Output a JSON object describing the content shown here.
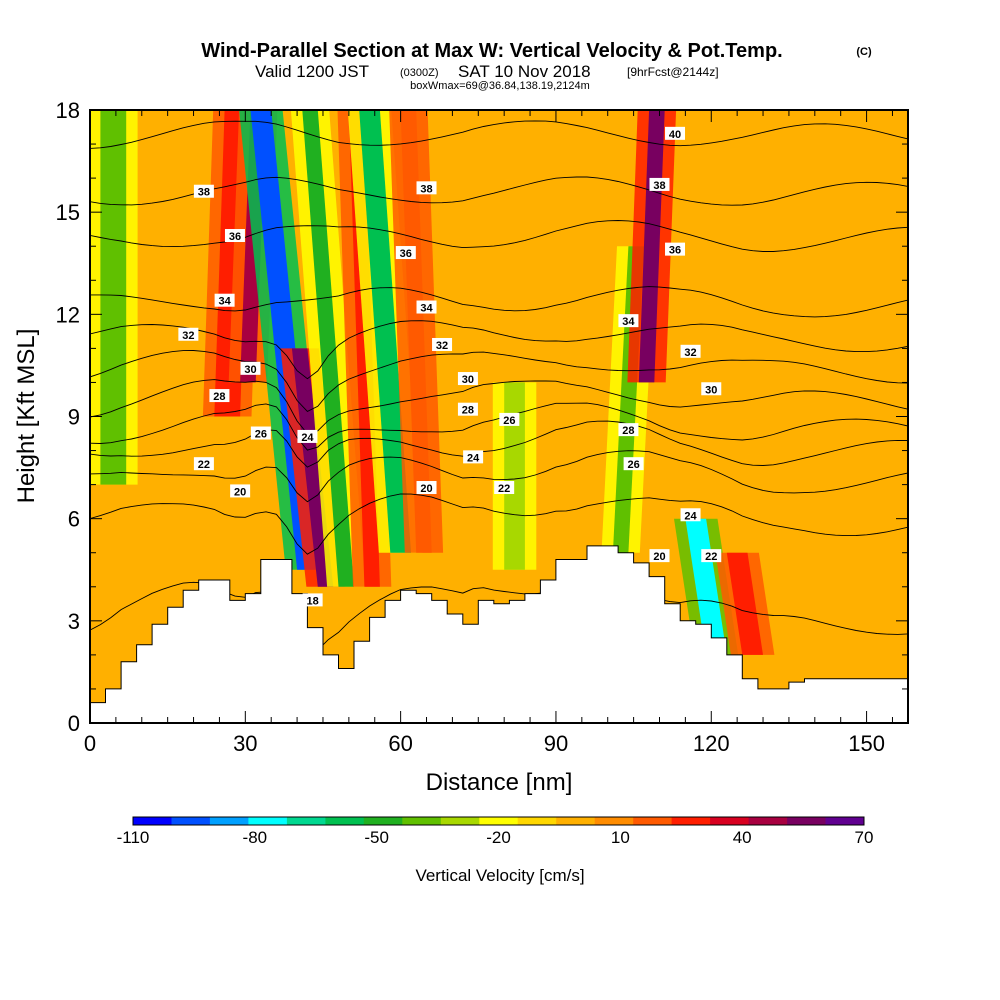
{
  "header": {
    "title": "Wind-Parallel Section at Max W: Vertical Velocity & Pot.Temp.",
    "copyright": "(C)",
    "valid_prefix": "Valid 1200 JST",
    "valid_utc": "(0300Z)",
    "valid_date": "SAT 10 Nov 2018",
    "forecast": "[9hrFcst@2144z]",
    "box_info": "boxWmax=69@36.84,138.19,2124m"
  },
  "chart_data": {
    "type": "heatmap",
    "title": "Wind-Parallel Section at Max W: Vertical Velocity & Pot.Temp.",
    "xlabel": "Distance [nm]",
    "ylabel": "Height [Kft MSL]",
    "xlim": [
      0,
      158
    ],
    "ylim": [
      0,
      18
    ],
    "x_ticks": [
      "0",
      "30",
      "60",
      "90",
      "120",
      "150"
    ],
    "y_ticks": [
      "0",
      "3",
      "6",
      "9",
      "12",
      "15",
      "18"
    ],
    "colorbar": {
      "label": "Vertical Velocity [cm/s]",
      "tick_labels": [
        "-110",
        "-80",
        "-50",
        "-20",
        "10",
        "40",
        "70"
      ],
      "levels": [
        -110,
        -100,
        -90,
        -80,
        -70,
        -60,
        -50,
        -40,
        -30,
        -20,
        -10,
        0,
        10,
        20,
        30,
        40,
        50,
        60,
        70
      ],
      "colors": [
        "#0000ff",
        "#0050ff",
        "#00a0ff",
        "#00ffff",
        "#00d890",
        "#00c050",
        "#20b020",
        "#60c000",
        "#a8d800",
        "#ffff00",
        "#ffd700",
        "#ffb000",
        "#ff8c00",
        "#ff5a00",
        "#ff1e00",
        "#d80020",
        "#a80040",
        "#780060",
        "#600090"
      ]
    },
    "velocity_bands": [
      {
        "x": 2,
        "w": 5,
        "ybot": 7,
        "ytop": 18,
        "value": -35,
        "tilt": 0
      },
      {
        "x": 24,
        "w": 5,
        "ybot": 9,
        "ytop": 18,
        "value": 35,
        "tilt": 2
      },
      {
        "x": 29,
        "w": 3,
        "ybot": 10,
        "ytop": 18,
        "value": 55,
        "tilt": 2
      },
      {
        "x": 40,
        "w": 4,
        "ybot": 4.5,
        "ytop": 18,
        "value": -95,
        "tilt": -9
      },
      {
        "x": 44,
        "w": 3,
        "ybot": 4,
        "ytop": 11,
        "value": 62,
        "tilt": -5
      },
      {
        "x": 48,
        "w": 3,
        "ybot": 4,
        "ytop": 18,
        "value": -50,
        "tilt": -7
      },
      {
        "x": 53,
        "w": 3,
        "ybot": 4,
        "ytop": 18,
        "value": 30,
        "tilt": -3
      },
      {
        "x": 58,
        "w": 4,
        "ybot": 5,
        "ytop": 18,
        "value": -55,
        "tilt": -6
      },
      {
        "x": 63,
        "w": 3,
        "ybot": 5,
        "ytop": 18,
        "value": 25,
        "tilt": -3
      },
      {
        "x": 80,
        "w": 4,
        "ybot": 4.5,
        "ytop": 10,
        "value": -30,
        "tilt": 0
      },
      {
        "x": 101,
        "w": 3,
        "ybot": 5,
        "ytop": 14,
        "value": -40,
        "tilt": 3
      },
      {
        "x": 106,
        "w": 3,
        "ybot": 10,
        "ytop": 18,
        "value": 60,
        "tilt": 2
      },
      {
        "x": 119,
        "w": 4,
        "ybot": 2,
        "ytop": 6,
        "value": -80,
        "tilt": -4
      },
      {
        "x": 126,
        "w": 4,
        "ybot": 2,
        "ytop": 5,
        "value": 30,
        "tilt": -3
      }
    ],
    "terrain_x": [
      0,
      3,
      6,
      9,
      12,
      15,
      18,
      21,
      24,
      27,
      30,
      33,
      36,
      39,
      42,
      45,
      48,
      51,
      54,
      57,
      60,
      63,
      66,
      69,
      72,
      75,
      78,
      81,
      84,
      87,
      90,
      93,
      96,
      99,
      102,
      105,
      108,
      111,
      114,
      117,
      120,
      123,
      126,
      129,
      132,
      135,
      138,
      141,
      144,
      147,
      150,
      153,
      156,
      158
    ],
    "terrain_y": [
      0.6,
      1.0,
      1.8,
      2.3,
      2.9,
      3.4,
      3.9,
      4.2,
      4.2,
      3.6,
      3.8,
      4.8,
      4.8,
      3.8,
      2.8,
      2.0,
      1.6,
      2.4,
      3.1,
      3.6,
      3.9,
      3.8,
      3.6,
      3.2,
      2.9,
      3.6,
      3.5,
      3.6,
      3.8,
      4.2,
      4.8,
      4.8,
      5.2,
      5.2,
      5.0,
      4.7,
      4.3,
      3.5,
      3.0,
      2.9,
      2.5,
      2.0,
      1.3,
      1.0,
      1.0,
      1.2,
      1.3,
      1.3,
      1.3,
      1.3,
      1.3,
      1.3,
      1.3,
      1.3
    ],
    "isentropes": [
      {
        "theta": 18,
        "y": 3.5
      },
      {
        "theta": 20,
        "y": 6.2
      },
      {
        "theta": 22,
        "y": 7.4
      },
      {
        "theta": 24,
        "y": 8.2
      },
      {
        "theta": 26,
        "y": 8.8
      },
      {
        "theta": 28,
        "y": 9.6
      },
      {
        "theta": 30,
        "y": 10.5
      },
      {
        "theta": 32,
        "y": 11.4
      },
      {
        "theta": 34,
        "y": 12.4
      },
      {
        "theta": 36,
        "y": 14.3
      },
      {
        "theta": 38,
        "y": 15.6
      },
      {
        "theta": 40,
        "y": 17.3
      }
    ],
    "contour_labels": [
      {
        "text": "38",
        "x": 22,
        "y": 15.6
      },
      {
        "text": "36",
        "x": 28,
        "y": 14.3
      },
      {
        "text": "34",
        "x": 26,
        "y": 12.4
      },
      {
        "text": "32",
        "x": 19,
        "y": 11.4
      },
      {
        "text": "30",
        "x": 31,
        "y": 10.4
      },
      {
        "text": "28",
        "x": 25,
        "y": 9.6
      },
      {
        "text": "26",
        "x": 33,
        "y": 8.5
      },
      {
        "text": "24",
        "x": 42,
        "y": 8.4
      },
      {
        "text": "22",
        "x": 22,
        "y": 7.6
      },
      {
        "text": "20",
        "x": 29,
        "y": 6.8
      },
      {
        "text": "18",
        "x": 43,
        "y": 3.6
      },
      {
        "text": "38",
        "x": 65,
        "y": 15.7
      },
      {
        "text": "36",
        "x": 61,
        "y": 13.8
      },
      {
        "text": "34",
        "x": 65,
        "y": 12.2
      },
      {
        "text": "32",
        "x": 68,
        "y": 11.1
      },
      {
        "text": "30",
        "x": 73,
        "y": 10.1
      },
      {
        "text": "28",
        "x": 73,
        "y": 9.2
      },
      {
        "text": "26",
        "x": 81,
        "y": 8.9
      },
      {
        "text": "24",
        "x": 74,
        "y": 7.8
      },
      {
        "text": "22",
        "x": 80,
        "y": 6.9
      },
      {
        "text": "20",
        "x": 65,
        "y": 6.9
      },
      {
        "text": "40",
        "x": 113,
        "y": 17.3
      },
      {
        "text": "38",
        "x": 110,
        "y": 15.8
      },
      {
        "text": "36",
        "x": 113,
        "y": 13.9
      },
      {
        "text": "34",
        "x": 104,
        "y": 11.8
      },
      {
        "text": "32",
        "x": 116,
        "y": 10.9
      },
      {
        "text": "30",
        "x": 120,
        "y": 9.8
      },
      {
        "text": "28",
        "x": 104,
        "y": 8.6
      },
      {
        "text": "26",
        "x": 105,
        "y": 7.6
      },
      {
        "text": "24",
        "x": 116,
        "y": 6.1
      },
      {
        "text": "22",
        "x": 120,
        "y": 4.9
      },
      {
        "text": "20",
        "x": 110,
        "y": 4.9
      }
    ]
  }
}
